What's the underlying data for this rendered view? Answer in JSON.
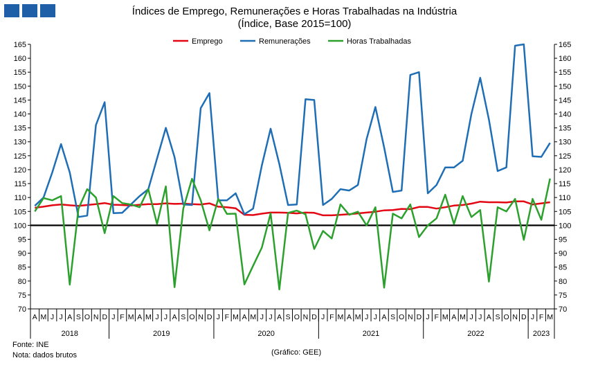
{
  "header": {
    "title": "Índices de Emprego, Remunerações e Horas Trabalhadas na Indústria",
    "subtitle": "(Índice, Base 2015=100)"
  },
  "footer": {
    "source": "Fonte: INE",
    "note": "Nota: dados brutos",
    "credit": "(Gráfico: GEE)"
  },
  "colors": {
    "logo": "#1f5fa8"
  },
  "chart_data": {
    "type": "line",
    "ylim": [
      70,
      165
    ],
    "ytick_step": 5,
    "reference_line": 100,
    "grid": "off",
    "legend_placement": "top-center",
    "x": [
      "A",
      "M",
      "J",
      "J",
      "A",
      "S",
      "O",
      "N",
      "D",
      "J",
      "F",
      "M",
      "A",
      "M",
      "J",
      "J",
      "A",
      "S",
      "O",
      "N",
      "D",
      "J",
      "F",
      "M",
      "A",
      "M",
      "J",
      "J",
      "A",
      "S",
      "O",
      "N",
      "D",
      "J",
      "F",
      "M",
      "A",
      "M",
      "J",
      "J",
      "A",
      "S",
      "O",
      "N",
      "D",
      "J",
      "F",
      "M",
      "A",
      "M",
      "J",
      "J",
      "A",
      "S",
      "O",
      "N",
      "D",
      "J",
      "F",
      "M"
    ],
    "years": [
      {
        "label": "2018",
        "start": 0,
        "count": 9
      },
      {
        "label": "2019",
        "start": 9,
        "count": 12
      },
      {
        "label": "2020",
        "start": 21,
        "count": 12
      },
      {
        "label": "2021",
        "start": 33,
        "count": 12
      },
      {
        "label": "2022",
        "start": 45,
        "count": 12
      },
      {
        "label": "2023",
        "start": 57,
        "count": 3
      }
    ],
    "series": [
      {
        "name": "Emprego",
        "color": "#e30613",
        "values": [
          106.3,
          106.7,
          107.2,
          107.5,
          107.2,
          107.0,
          107.3,
          107.6,
          108.0,
          107.4,
          107.3,
          107.1,
          107.4,
          107.6,
          107.6,
          107.9,
          107.7,
          107.8,
          107.6,
          107.5,
          107.9,
          106.7,
          106.5,
          106.1,
          103.8,
          103.7,
          104.2,
          104.6,
          104.6,
          104.5,
          104.3,
          104.6,
          104.5,
          103.6,
          103.6,
          103.8,
          104.0,
          104.3,
          104.6,
          104.9,
          105.4,
          105.5,
          105.9,
          105.8,
          106.6,
          106.6,
          106.0,
          106.5,
          107.1,
          107.3,
          107.8,
          108.5,
          108.3,
          108.3,
          108.2,
          108.6,
          108.6,
          107.5,
          107.9,
          108.3
        ]
      },
      {
        "name": "Remunerações",
        "color": "#1f6eb5",
        "values": [
          107.0,
          110.0,
          119.0,
          129.2,
          119.0,
          103.0,
          103.5,
          136.0,
          144.2,
          104.4,
          104.5,
          107.5,
          110.5,
          113.0,
          124.0,
          135.0,
          124.5,
          107.5,
          107.3,
          142.1,
          147.5,
          109.0,
          109.0,
          111.5,
          104.0,
          106.0,
          121.5,
          134.7,
          122.0,
          107.3,
          107.5,
          145.3,
          145.0,
          107.3,
          109.5,
          113.0,
          112.5,
          114.5,
          131.0,
          142.5,
          128.0,
          112.0,
          112.5,
          154.0,
          155.0,
          111.5,
          114.5,
          120.8,
          120.8,
          123.2,
          140.0,
          153.0,
          138.0,
          119.5,
          120.8,
          164.5,
          165.0,
          124.8,
          124.6,
          129.6
        ]
      },
      {
        "name": "Horas Trabalhadas",
        "color": "#2ca02c",
        "values": [
          105.0,
          109.8,
          109.0,
          110.5,
          78.7,
          106.0,
          113.0,
          110.0,
          97.2,
          110.5,
          108.0,
          107.5,
          106.5,
          113.0,
          100.5,
          114.0,
          77.8,
          106.0,
          116.7,
          109.0,
          98.2,
          109.5,
          104.1,
          104.2,
          78.8,
          85.5,
          92.0,
          104.3,
          77.0,
          104.5,
          105.3,
          104.0,
          91.5,
          98.0,
          95.3,
          107.5,
          103.8,
          104.9,
          100.0,
          106.5,
          77.6,
          104.2,
          102.5,
          107.5,
          95.8,
          100.0,
          102.5,
          111.0,
          100.5,
          110.5,
          103.0,
          105.5,
          79.8,
          106.5,
          105.0,
          109.5,
          94.8,
          109.5,
          102.0,
          116.8
        ]
      }
    ]
  }
}
